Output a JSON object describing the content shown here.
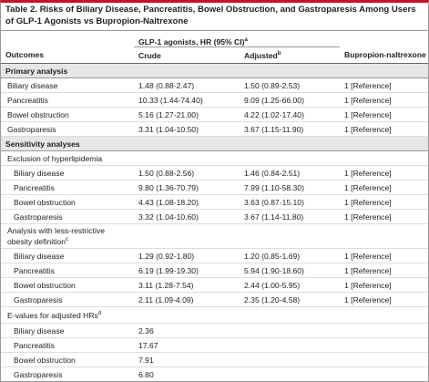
{
  "title": {
    "label": "Table 2.",
    "text": "Risks of Biliary Disease, Pancreatitis, Bowel Obstruction, and Gastroparesis Among Users of GLP-1 Agonists vs Bupropion-Naltrexone"
  },
  "header": {
    "group": "GLP-1 agonists, HR (95% CI)",
    "group_note": "a",
    "columns": [
      "Outcomes",
      "Crude",
      "Adjusted",
      "Bupropion-naltrexone"
    ],
    "adjusted_note": "b"
  },
  "rows": [
    {
      "kind": "section",
      "cells": [
        "Primary analysis"
      ]
    },
    {
      "kind": "item",
      "cells": [
        "Biliary disease",
        "1.48 (0.88-2.47)",
        "1.50 (0.89-2.53)",
        "1 [Reference]"
      ]
    },
    {
      "kind": "item",
      "cells": [
        "Pancreatitis",
        "10.33 (1.44-74.40)",
        "9.09 (1.25-66.00)",
        "1 [Reference]"
      ]
    },
    {
      "kind": "item",
      "cells": [
        "Bowel obstruction",
        "5.16 (1.27-21.00)",
        "4.22 (1.02-17.40)",
        "1 [Reference]"
      ]
    },
    {
      "kind": "item",
      "cells": [
        "Gastroparesis",
        "3.31 (1.04-10.50)",
        "3.67 (1.15-11.90)",
        "1 [Reference]"
      ]
    },
    {
      "kind": "section",
      "cells": [
        "Sensitivity analyses"
      ]
    },
    {
      "kind": "group",
      "cells": [
        "Exclusion of hyperlipidemia"
      ]
    },
    {
      "kind": "sub",
      "cells": [
        "Biliary disease",
        "1.50 (0.88-2.56)",
        "1.46 (0.84-2.51)",
        "1 [Reference]"
      ]
    },
    {
      "kind": "sub",
      "cells": [
        "Pancreatitis",
        "9.80 (1.36-70.79)",
        "7.99 (1.10-58.30)",
        "1 [Reference]"
      ]
    },
    {
      "kind": "sub",
      "cells": [
        "Bowel obstruction",
        "4.43 (1.08-18.20)",
        "3.63 (0.87-15.10)",
        "1 [Reference]"
      ]
    },
    {
      "kind": "sub",
      "cells": [
        "Gastroparesis",
        "3.32 (1.04-10.60)",
        "3.67 (1.14-11.80)",
        "1 [Reference]"
      ]
    },
    {
      "kind": "group",
      "cells": [
        "Analysis with less-restrictive obesity definition"
      ],
      "note": "c"
    },
    {
      "kind": "sub",
      "cells": [
        "Biliary disease",
        "1.29 (0.92-1.80)",
        "1.20 (0.85-1.69)",
        "1 [Reference]"
      ]
    },
    {
      "kind": "sub",
      "cells": [
        "Pancreatitis",
        "6.19 (1.99-19.30)",
        "5.94 (1.90-18.60)",
        "1 [Reference]"
      ]
    },
    {
      "kind": "sub",
      "cells": [
        "Bowel obstruction",
        "3.11 (1.28-7.54)",
        "2.44 (1.00-5.95)",
        "1 [Reference]"
      ]
    },
    {
      "kind": "sub",
      "cells": [
        "Gastroparesis",
        "2.11 (1.09-4.09)",
        "2.35 (1.20-4.58)",
        "1 [Reference]"
      ]
    },
    {
      "kind": "group",
      "cells": [
        "E-values for adjusted HRs"
      ],
      "note": "d"
    },
    {
      "kind": "sub",
      "cells": [
        "Biliary disease",
        "2.36"
      ]
    },
    {
      "kind": "sub",
      "cells": [
        "Pancreatitis",
        "17.67"
      ]
    },
    {
      "kind": "sub",
      "cells": [
        "Bowel obstruction",
        "7.91"
      ]
    },
    {
      "kind": "sub",
      "cells": [
        "Gastroparesis",
        "6.80"
      ]
    }
  ]
}
